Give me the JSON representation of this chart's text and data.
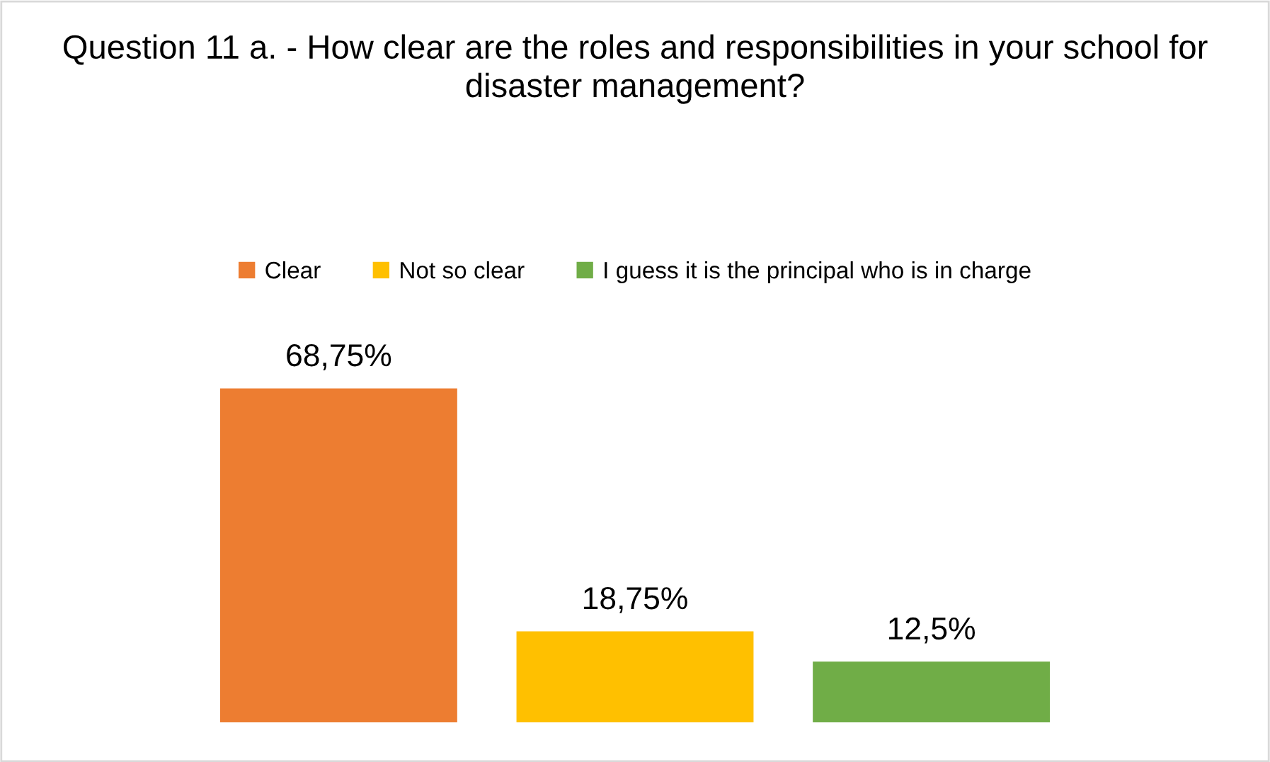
{
  "chart_data": {
    "type": "bar",
    "title": "Question 11 a. - How clear are the roles and responsibilities in your school for disaster management?",
    "categories": [
      null
    ],
    "series": [
      {
        "name": "Clear",
        "color": "#ed7d31",
        "values": [
          68.75
        ],
        "value_labels": [
          "68,75%"
        ]
      },
      {
        "name": "Not so clear",
        "color": "#ffc000",
        "values": [
          18.75
        ],
        "value_labels": [
          "18,75%"
        ]
      },
      {
        "name": "I guess it is the principal who is in charge",
        "color": "#70ad47",
        "values": [
          12.5
        ],
        "value_labels": [
          "12,5%"
        ]
      }
    ],
    "legend": "top",
    "grid": false
  }
}
